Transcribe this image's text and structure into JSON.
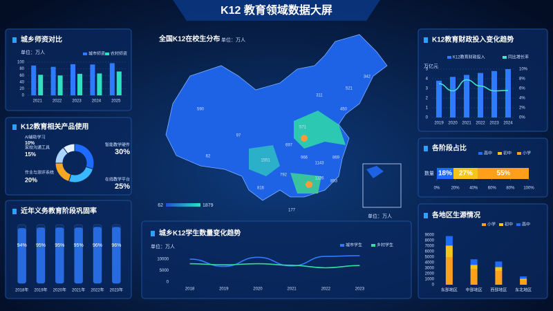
{
  "title": "K12 教育领域数据大屏",
  "chart_data": [
    {
      "type": "bar",
      "title": "城乡师资对比",
      "unit": "单位：万人",
      "categories": [
        "2021",
        "2022",
        "2023",
        "2024",
        "2025"
      ],
      "series": [
        {
          "name": "城市师资",
          "color": "#2f7bff",
          "values": [
            90,
            86,
            94,
            93,
            97
          ]
        },
        {
          "name": "农村师资",
          "color": "#2fe0c0",
          "values": [
            62,
            60,
            65,
            66,
            72
          ]
        }
      ],
      "ylim": [
        0,
        100
      ],
      "yticks": [
        0,
        20,
        40,
        60,
        80,
        100
      ],
      "legend": "top-right"
    },
    {
      "type": "donut",
      "title": "K12教育相关产品使用",
      "categories": [
        "智能教学硬件",
        "在线教学平台",
        "作业与测评系统",
        "家校沟通工具",
        "AI辅助学习"
      ],
      "values": [
        30,
        25,
        20,
        15,
        10
      ],
      "value_labels": [
        "30%",
        "25%",
        "20%",
        "15%",
        "10%"
      ],
      "colors": [
        "#1f6bff",
        "#3ab8ff",
        "#f5a623",
        "#a9d4ff",
        "#e6f2ff"
      ]
    },
    {
      "type": "bar",
      "title": "近年义务教育阶段巩固率",
      "categories": [
        "2018年",
        "2019年",
        "2020年",
        "2021年",
        "2022年",
        "2023年"
      ],
      "values": [
        94,
        95,
        95,
        95,
        96,
        96
      ],
      "value_labels": [
        "94%",
        "95%",
        "95%",
        "95%",
        "96%",
        "96%"
      ],
      "ylim": [
        0,
        100
      ],
      "color": "#2f7bff"
    },
    {
      "type": "line",
      "title": "城乡K12学生数量变化趋势",
      "unit": "单位：万人",
      "categories": [
        "2018",
        "2019",
        "2020",
        "2021",
        "2022",
        "2023"
      ],
      "series": [
        {
          "name": "城市学生",
          "color": "#2f7bff",
          "values": [
            10000,
            6800,
            10800,
            7000,
            11200,
            11500
          ]
        },
        {
          "name": "乡村学生",
          "color": "#2fe0a0",
          "values": [
            8000,
            7500,
            8000,
            7300,
            6200,
            7200
          ]
        }
      ],
      "ylim": [
        0,
        13000
      ],
      "yticks": [
        0,
        5000,
        10000
      ],
      "legend": "top-right"
    },
    {
      "type": "combo",
      "title": "K12教育财政投入变化趋势",
      "unit": "万亿元",
      "categories": [
        "2019",
        "2020",
        "2021",
        "2022",
        "2023",
        "2024"
      ],
      "series": [
        {
          "name": "K12教育财政投入",
          "type": "bar",
          "color": "#2f7bff",
          "values": [
            3.8,
            4.2,
            4.4,
            4.6,
            4.8,
            5.0
          ]
        },
        {
          "name": "同比增长率",
          "type": "line",
          "axis": "y2",
          "color": "#3ee6c8",
          "values": [
            7,
            5.5,
            7.8,
            6.5,
            5.5,
            5.6
          ]
        }
      ],
      "ylim": [
        0,
        5
      ],
      "yticks": [
        0,
        1,
        2,
        3,
        4,
        5
      ],
      "y2lim": [
        0,
        10
      ],
      "y2ticks": [
        {
          "value": 0,
          "label": "0%"
        },
        {
          "value": 2,
          "label": "2%"
        },
        {
          "value": 4,
          "label": "4%"
        },
        {
          "value": 6,
          "label": "6%"
        },
        {
          "value": 8,
          "label": "8%"
        },
        {
          "value": 10,
          "label": "10%"
        }
      ]
    },
    {
      "type": "bar",
      "orientation": "horizontal",
      "stacked": true,
      "title": "各阶段占比",
      "categories": [
        "数量"
      ],
      "series": [
        {
          "name": "高中",
          "color": "#1f6bff",
          "values": [
            18
          ],
          "value_labels": [
            "18%"
          ]
        },
        {
          "name": "初中",
          "color": "#f5c518",
          "values": [
            27
          ],
          "value_labels": [
            "27%"
          ]
        },
        {
          "name": "小学",
          "color": "#ff9f1a",
          "values": [
            55
          ],
          "value_labels": [
            "55%"
          ]
        }
      ],
      "xlim": [
        0,
        100
      ],
      "xticks": [
        {
          "value": 0,
          "label": "0%"
        },
        {
          "value": 20,
          "label": "20%"
        },
        {
          "value": 40,
          "label": "40%"
        },
        {
          "value": 60,
          "label": "60%"
        },
        {
          "value": 80,
          "label": "80%"
        },
        {
          "value": 100,
          "label": "100%"
        }
      ]
    },
    {
      "type": "bar",
      "stacked": true,
      "title": "各地区生源情况",
      "categories": [
        "东部地区",
        "中部地区",
        "西部地区",
        "东北地区"
      ],
      "series": [
        {
          "name": "小学",
          "color": "#ff9f1a",
          "values": [
            5000,
            2800,
            2500,
            800
          ]
        },
        {
          "name": "初中",
          "color": "#f5c518",
          "values": [
            2100,
            800,
            700,
            300
          ]
        },
        {
          "name": "高中",
          "color": "#1f6bff",
          "values": [
            1700,
            1000,
            1000,
            400
          ]
        }
      ],
      "ylim": [
        0,
        9000
      ],
      "yticks": [
        0,
        1000,
        2000,
        3000,
        4000,
        5000,
        6000,
        7000,
        8000,
        9000
      ]
    }
  ],
  "map": {
    "title": "全国K12在校生分布",
    "unit": "单位：万人",
    "legend_range": [
      62,
      1879
    ],
    "inset_unit": "单位：万人",
    "values": [
      342,
      521,
      311,
      590,
      97,
      62,
      571,
      450,
      697,
      1551,
      966,
      1143,
      869,
      1126,
      816,
      792,
      893,
      177
    ]
  }
}
